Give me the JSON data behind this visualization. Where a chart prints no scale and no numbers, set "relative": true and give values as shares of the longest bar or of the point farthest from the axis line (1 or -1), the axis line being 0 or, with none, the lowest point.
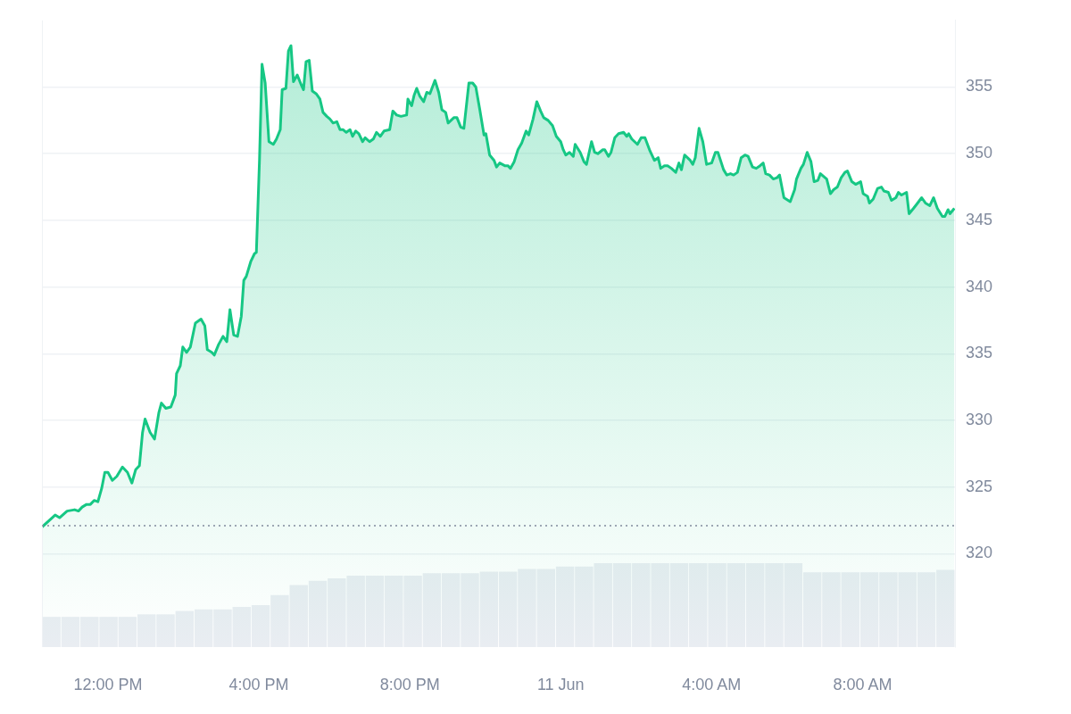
{
  "chart_data": [
    {
      "type": "area",
      "xlim": [
        "--06-10T10:15",
        "--06-11T10:27"
      ],
      "ylim": [
        313,
        360
      ],
      "xticks": [
        {
          "value": "--06-10T12:00",
          "label": "12:00 PM"
        },
        {
          "value": "--06-10T16:00",
          "label": "4:00 PM"
        },
        {
          "value": "--06-10T20:00",
          "label": "8:00 PM"
        },
        {
          "value": "--06-11T00:00",
          "label": "11 Jun"
        },
        {
          "value": "--06-11T04:00",
          "label": "4:00 AM"
        },
        {
          "value": "--06-11T08:00",
          "label": "8:00 AM"
        }
      ],
      "yticks": [
        320,
        325,
        330,
        335,
        340,
        345,
        350,
        355
      ],
      "grid": "y",
      "legend": false,
      "ref_lines": [
        {
          "axis": "y",
          "value": 322.1,
          "color": "#808a9d",
          "line_style": "dotted"
        }
      ],
      "series": [
        {
          "color": "#16c784",
          "x": [
            "--06-10T10:15",
            "--06-10T10:36",
            "--06-10T10:43",
            "--06-10T10:55",
            "--06-10T11:07",
            "--06-10T11:13",
            "--06-10T11:19",
            "--06-10T11:26",
            "--06-10T11:32",
            "--06-10T11:38",
            "--06-10T11:44",
            "--06-10T11:50",
            "--06-10T11:55",
            "--06-10T12:00",
            "--06-10T12:07",
            "--06-10T12:14",
            "--06-10T12:23",
            "--06-10T12:31",
            "--06-10T12:38",
            "--06-10T12:44",
            "--06-10T12:50",
            "--06-10T12:55",
            "--06-10T12:59",
            "--06-10T13:07",
            "--06-10T13:14",
            "--06-10T13:21",
            "--06-10T13:25",
            "--06-10T13:32",
            "--06-10T13:40",
            "--06-10T13:47",
            "--06-10T13:49",
            "--06-10T13:55",
            "--06-10T13:59",
            "--06-10T14:05",
            "--06-10T14:11",
            "--06-10T14:19",
            "--06-10T14:28",
            "--06-10T14:34",
            "--06-10T14:38",
            "--06-10T14:45",
            "--06-10T14:49",
            "--06-10T14:56",
            "--06-10T15:03",
            "--06-10T15:09",
            "--06-10T15:14",
            "--06-10T15:20",
            "--06-10T15:26",
            "--06-10T15:32",
            "--06-10T15:36",
            "--06-10T15:40",
            "--06-10T15:47",
            "--06-10T15:53",
            "--06-10T15:56",
            "--06-10T16:01",
            "--06-10T16:05",
            "--06-10T16:10",
            "--06-10T16:16",
            "--06-10T16:23",
            "--06-10T16:28",
            "--06-10T16:34",
            "--06-10T16:37",
            "--06-10T16:43",
            "--06-10T16:47",
            "--06-10T16:51",
            "--06-10T16:55",
            "--06-10T17:01",
            "--06-10T17:07",
            "--06-10T17:11",
            "--06-10T17:15",
            "--06-10T17:20",
            "--06-10T17:25",
            "--06-10T17:31",
            "--06-10T17:37",
            "--06-10T17:42",
            "--06-10T17:48",
            "--06-10T17:53",
            "--06-10T17:58",
            "--06-10T18:04",
            "--06-10T18:09",
            "--06-10T18:14",
            "--06-10T18:19",
            "--06-10T18:25",
            "--06-10T18:29",
            "--06-10T18:34",
            "--06-10T18:39",
            "--06-10T18:45",
            "--06-10T18:49",
            "--06-10T18:56",
            "--06-10T19:02",
            "--06-10T19:07",
            "--06-10T19:13",
            "--06-10T19:19",
            "--06-10T19:28",
            "--06-10T19:33",
            "--06-10T19:39",
            "--06-10T19:46",
            "--06-10T19:55",
            "--06-10T19:57",
            "--06-10T20:03",
            "--06-10T20:07",
            "--06-10T20:11",
            "--06-10T20:16",
            "--06-10T20:22",
            "--06-10T20:27",
            "--06-10T20:32",
            "--06-10T20:40",
            "--06-10T20:46",
            "--06-10T20:51",
            "--06-10T20:57",
            "--06-10T21:01",
            "--06-10T21:10",
            "--06-10T21:15",
            "--06-10T21:21",
            "--06-10T21:26",
            "--06-10T21:34",
            "--06-10T21:40",
            "--06-10T21:45",
            "--06-10T21:51",
            "--06-10T21:58",
            "--06-10T22:01",
            "--06-10T22:07",
            "--06-10T22:14",
            "--06-10T22:18",
            "--06-10T22:23",
            "--06-10T22:31",
            "--06-10T22:36",
            "--06-10T22:40",
            "--06-10T22:46",
            "--06-10T22:52",
            "--06-10T22:58",
            "--06-10T23:05",
            "--06-10T23:09",
            "--06-10T23:16",
            "--06-10T23:22",
            "--06-10T23:28",
            "--06-10T23:33",
            "--06-10T23:40",
            "--06-10T23:47",
            "--06-10T23:53",
            "--06-11T00:00",
            "--06-11T00:04",
            "--06-11T00:08",
            "--06-11T00:14",
            "--06-11T00:20",
            "--06-11T00:23",
            "--06-11T00:31",
            "--06-11T00:37",
            "--06-11T00:41",
            "--06-11T00:49",
            "--06-11T00:54",
            "--06-11T00:59",
            "--06-11T01:07",
            "--06-11T01:10",
            "--06-11T01:16",
            "--06-11T01:20",
            "--06-11T01:26",
            "--06-11T01:32",
            "--06-11T01:40",
            "--06-11T01:45",
            "--06-11T01:48",
            "--06-11T01:53",
            "--06-11T02:02",
            "--06-11T02:08",
            "--06-11T02:14",
            "--06-11T02:22",
            "--06-11T02:29",
            "--06-11T02:35",
            "--06-11T02:39",
            "--06-11T02:45",
            "--06-11T02:50",
            "--06-11T02:56",
            "--06-11T03:03",
            "--06-11T03:08",
            "--06-11T03:12",
            "--06-11T03:17",
            "--06-11T03:26",
            "--06-11T03:30",
            "--06-11T03:34",
            "--06-11T03:40",
            "--06-11T03:46",
            "--06-11T03:52",
            "--06-11T04:00",
            "--06-11T04:06",
            "--06-11T04:10",
            "--06-11T04:19",
            "--06-11T04:24",
            "--06-11T04:30",
            "--06-11T04:35",
            "--06-11T04:41",
            "--06-11T04:47",
            "--06-11T04:53",
            "--06-11T04:58",
            "--06-11T05:05",
            "--06-11T05:11",
            "--06-11T05:17",
            "--06-11T05:22",
            "--06-11T05:26",
            "--06-11T05:32",
            "--06-11T05:38",
            "--06-11T05:44",
            "--06-11T05:48",
            "--06-11T05:55",
            "--06-11T06:05",
            "--06-11T06:12",
            "--06-11T06:15",
            "--06-11T06:22",
            "--06-11T06:26",
            "--06-11T06:32",
            "--06-11T06:38",
            "--06-11T06:43",
            "--06-11T06:49",
            "--06-11T06:53",
            "--06-11T07:03",
            "--06-11T07:09",
            "--06-11T07:14",
            "--06-11T07:20",
            "--06-11T07:26",
            "--06-11T07:32",
            "--06-11T07:36",
            "--06-11T07:43",
            "--06-11T07:49",
            "--06-11T07:57",
            "--06-11T08:01",
            "--06-11T08:08",
            "--06-11T08:11",
            "--06-11T08:17",
            "--06-11T08:24",
            "--06-11T08:30",
            "--06-11T08:34",
            "--06-11T08:41",
            "--06-11T08:46",
            "--06-11T08:53",
            "--06-11T08:57",
            "--06-11T09:02",
            "--06-11T09:10",
            "--06-11T09:14",
            "--06-11T09:21",
            "--06-11T09:26",
            "--06-11T09:34",
            "--06-11T09:40",
            "--06-11T09:47",
            "--06-11T09:53",
            "--06-11T09:59",
            "--06-11T10:07",
            "--06-11T10:11",
            "--06-11T10:16",
            "--06-11T10:19",
            "--06-11T10:26"
          ],
          "values": [
            322.0,
            322.9,
            322.7,
            323.2,
            323.3,
            323.2,
            323.5,
            323.7,
            323.7,
            324.0,
            323.9,
            324.9,
            326.1,
            326.1,
            325.5,
            325.8,
            326.5,
            326.1,
            325.3,
            326.3,
            326.6,
            329.1,
            330.1,
            329.1,
            328.6,
            330.6,
            331.3,
            330.9,
            331.0,
            331.9,
            333.5,
            334.1,
            335.5,
            335.1,
            335.5,
            337.3,
            337.6,
            337.1,
            335.3,
            335.1,
            334.9,
            335.7,
            336.3,
            335.9,
            338.3,
            336.4,
            336.3,
            337.8,
            340.5,
            340.8,
            341.9,
            342.5,
            342.6,
            349.6,
            356.7,
            355.3,
            350.9,
            350.7,
            351.1,
            351.8,
            354.8,
            354.9,
            357.7,
            358.1,
            355.4,
            355.9,
            355.2,
            354.8,
            356.9,
            357.0,
            354.7,
            354.5,
            354.1,
            353.1,
            352.8,
            352.6,
            352.3,
            352.4,
            351.8,
            351.8,
            351.6,
            351.8,
            351.3,
            351.7,
            351.5,
            350.9,
            351.2,
            350.9,
            351.1,
            351.6,
            351.3,
            351.7,
            351.8,
            353.2,
            352.9,
            352.8,
            352.9,
            354.1,
            353.6,
            354.4,
            354.9,
            354.3,
            353.9,
            354.6,
            354.5,
            355.5,
            354.6,
            353.3,
            353.1,
            352.3,
            352.7,
            352.7,
            352.0,
            351.9,
            355.3,
            355.3,
            355.0,
            353.4,
            351.4,
            351.5,
            349.9,
            349.5,
            349.0,
            349.3,
            349.1,
            349.1,
            348.9,
            349.4,
            350.3,
            350.8,
            351.7,
            351.4,
            352.6,
            353.9,
            353.2,
            352.7,
            352.5,
            352.1,
            351.3,
            350.9,
            350.3,
            349.9,
            350.1,
            349.8,
            350.7,
            350.1,
            349.4,
            349.2,
            350.9,
            350.1,
            350.0,
            350.3,
            350.3,
            349.8,
            350.1,
            351.2,
            351.5,
            351.6,
            351.3,
            351.5,
            351.1,
            350.7,
            351.2,
            351.2,
            350.2,
            349.5,
            349.7,
            348.9,
            349.1,
            349.1,
            348.9,
            348.6,
            349.3,
            348.8,
            349.9,
            349.5,
            349.2,
            349.7,
            351.9,
            350.9,
            349.2,
            349.3,
            350.1,
            350.1,
            348.8,
            348.4,
            348.5,
            348.4,
            348.6,
            349.7,
            349.9,
            349.8,
            349.0,
            348.9,
            349.1,
            349.3,
            348.5,
            348.4,
            348.1,
            348.2,
            348.4,
            346.7,
            346.4,
            347.3,
            348.1,
            348.9,
            349.2,
            350.1,
            349.4,
            347.9,
            348.0,
            348.5,
            348.1,
            347.0,
            347.3,
            347.5,
            348.2,
            348.6,
            348.7,
            347.9,
            347.7,
            347.9,
            347.0,
            346.8,
            346.3,
            346.6,
            347.4,
            347.5,
            347.2,
            347.1,
            346.5,
            346.7,
            347.1,
            346.9,
            347.1,
            345.5,
            345.9,
            346.2,
            346.7,
            346.3,
            346.1,
            346.7,
            345.9,
            345.3,
            345.3,
            345.8,
            345.5,
            345.9
          ]
        }
      ]
    },
    {
      "type": "bar",
      "relative": true,
      "tick_labels": false,
      "grid": false,
      "legend": false,
      "color": "#e9edf2",
      "categories": [
        null,
        null,
        null,
        null,
        null,
        null,
        null,
        null,
        null,
        null,
        null,
        null,
        null,
        null,
        null,
        null,
        null,
        null,
        null,
        null,
        null,
        null,
        null,
        null,
        null,
        null,
        null,
        null,
        null,
        null,
        null,
        null,
        null,
        null,
        null,
        null,
        null,
        null,
        null,
        null,
        null,
        null,
        null,
        null,
        null,
        null,
        null,
        null
      ],
      "values": [
        0.36,
        0.36,
        0.36,
        0.36,
        0.36,
        0.39,
        0.39,
        0.43,
        0.45,
        0.45,
        0.48,
        0.5,
        0.62,
        0.74,
        0.79,
        0.82,
        0.85,
        0.85,
        0.85,
        0.85,
        0.88,
        0.88,
        0.88,
        0.9,
        0.9,
        0.93,
        0.93,
        0.96,
        0.96,
        1,
        1,
        1,
        1,
        1,
        1,
        1,
        1,
        1,
        1,
        1,
        0.89,
        0.89,
        0.89,
        0.89,
        0.89,
        0.89,
        0.89,
        0.92
      ]
    }
  ]
}
